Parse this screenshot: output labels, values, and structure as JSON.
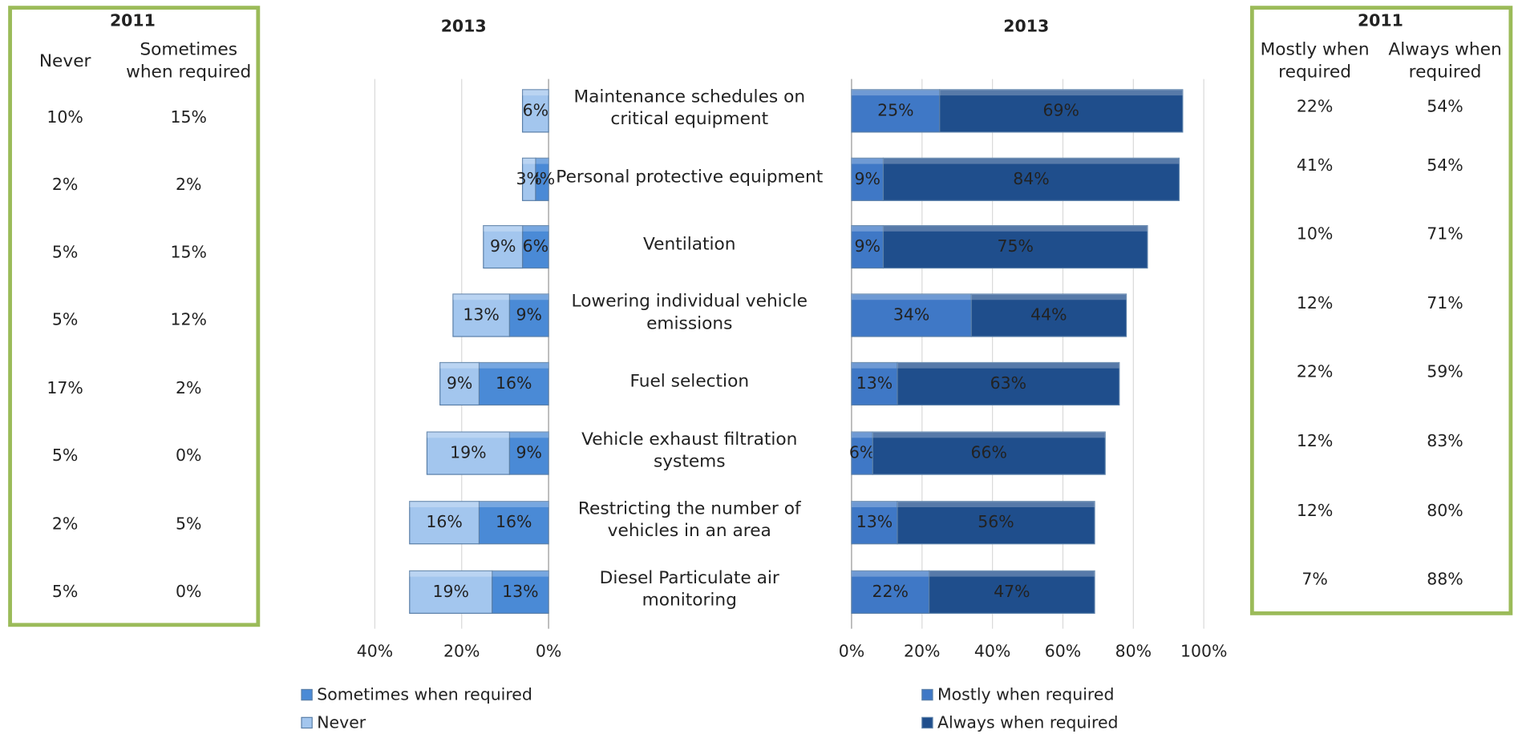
{
  "left_table": {
    "title": "2011",
    "columns": [
      "Never",
      "Sometimes when required"
    ],
    "rows": [
      [
        "10%",
        "15%"
      ],
      [
        "2%",
        "2%"
      ],
      [
        "5%",
        "15%"
      ],
      [
        "5%",
        "12%"
      ],
      [
        "17%",
        "2%"
      ],
      [
        "5%",
        "0%"
      ],
      [
        "2%",
        "5%"
      ],
      [
        "5%",
        "0%"
      ]
    ]
  },
  "right_table": {
    "title": "2011",
    "columns": [
      "Mostly when required",
      "Always when required"
    ],
    "rows": [
      [
        "22%",
        "54%"
      ],
      [
        "41%",
        "54%"
      ],
      [
        "10%",
        "71%"
      ],
      [
        "12%",
        "71%"
      ],
      [
        "22%",
        "59%"
      ],
      [
        "12%",
        "83%"
      ],
      [
        "12%",
        "80%"
      ],
      [
        "7%",
        "88%"
      ]
    ]
  },
  "chart_data": [
    {
      "type": "bar",
      "orientation": "horizontal",
      "stacked": true,
      "title": "2013",
      "categories": [
        "Maintenance schedules on critical equipment",
        "Personal protective equipment",
        "Ventilation",
        "Lowering individual vehicle emissions",
        "Fuel selection",
        "Vehicle exhaust filtration systems",
        "Restricting the number of vehicles in an area",
        "Diesel Particulate air monitoring"
      ],
      "xlim": [
        40,
        0
      ],
      "xticks": [
        {
          "value": 40,
          "label": "40%"
        },
        {
          "value": 20,
          "label": "20%"
        },
        {
          "value": 0,
          "label": "0%"
        }
      ],
      "grid": true,
      "series": [
        {
          "name": "Sometimes when required",
          "color": "#4a8ad6",
          "values": [
            null,
            3,
            6,
            9,
            16,
            9,
            16,
            13
          ],
          "value_labels": [
            null,
            "3%",
            "6%",
            "9%",
            "16%",
            "9%",
            "16%",
            "13%"
          ]
        },
        {
          "name": "Never",
          "color": "#a3c6ee",
          "values": [
            6,
            3,
            9,
            13,
            9,
            19,
            16,
            19
          ],
          "value_labels": [
            "6%",
            "3%",
            "9%",
            "13%",
            "9%",
            "19%",
            "16%",
            "19%"
          ]
        }
      ]
    },
    {
      "type": "bar",
      "orientation": "horizontal",
      "stacked": true,
      "title": "2013",
      "xlim": [
        0,
        100
      ],
      "xticks": [
        {
          "value": 0,
          "label": "0%"
        },
        {
          "value": 20,
          "label": "20%"
        },
        {
          "value": 40,
          "label": "40%"
        },
        {
          "value": 60,
          "label": "60%"
        },
        {
          "value": 80,
          "label": "80%"
        },
        {
          "value": 100,
          "label": "100%"
        }
      ],
      "grid": true,
      "series": [
        {
          "name": "Mostly when required",
          "color": "#3f78c6",
          "values": [
            25,
            9,
            9,
            34,
            13,
            6,
            13,
            22
          ],
          "value_labels": [
            "25%",
            "9%",
            "9%",
            "34%",
            "13%",
            "6%",
            "13%",
            "22%"
          ]
        },
        {
          "name": "Always when required",
          "color": "#1f4e8c",
          "values": [
            69,
            84,
            75,
            44,
            63,
            66,
            56,
            47
          ],
          "value_labels": [
            "69%",
            "84%",
            "75%",
            "44%",
            "63%",
            "66%",
            "56%",
            "47%"
          ]
        }
      ]
    }
  ]
}
